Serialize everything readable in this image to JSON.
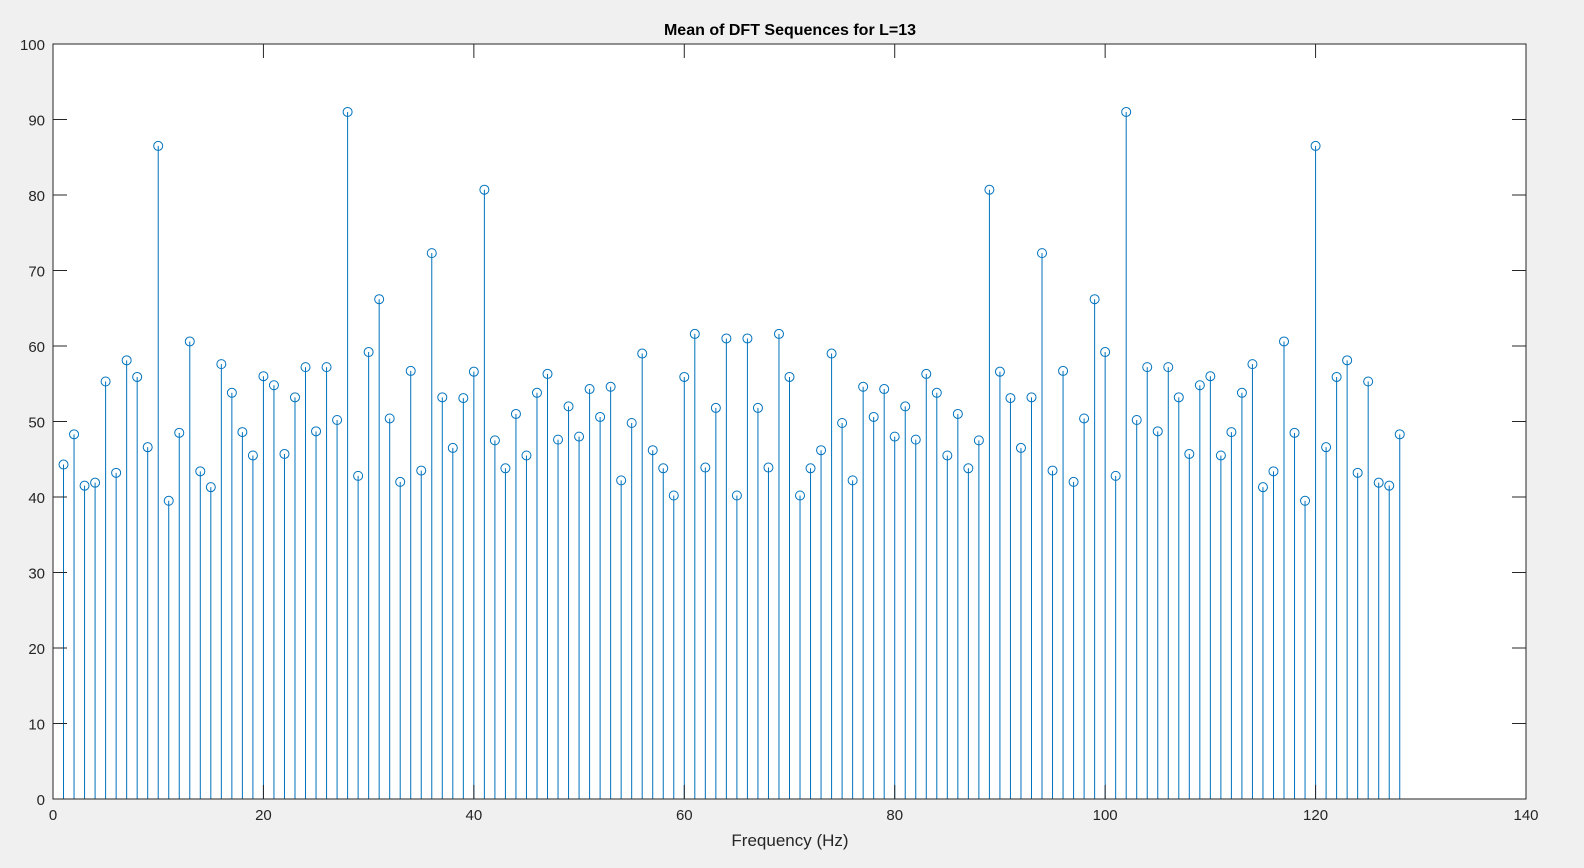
{
  "figure": {
    "background": "#f0f0f0",
    "axes_background": "#ffffff",
    "axis_color": "#262626",
    "stem_color": "#0072bd"
  },
  "chart_data": {
    "type": "stem",
    "title": "Mean of DFT Sequences for L=13",
    "xlabel": "Frequency (Hz)",
    "ylabel": "",
    "xlim": [
      0,
      140
    ],
    "ylim": [
      0,
      100
    ],
    "xticks": [
      0,
      20,
      40,
      60,
      80,
      100,
      120,
      140
    ],
    "yticks": [
      0,
      10,
      20,
      30,
      40,
      50,
      60,
      70,
      80,
      90,
      100
    ],
    "grid": false,
    "marker": "open-circle",
    "x": [
      1,
      2,
      3,
      4,
      5,
      6,
      7,
      8,
      9,
      10,
      11,
      12,
      13,
      14,
      15,
      16,
      17,
      18,
      19,
      20,
      21,
      22,
      23,
      24,
      25,
      26,
      27,
      28,
      29,
      30,
      31,
      32,
      33,
      34,
      35,
      36,
      37,
      38,
      39,
      40,
      41,
      42,
      43,
      44,
      45,
      46,
      47,
      48,
      49,
      50,
      51,
      52,
      53,
      54,
      55,
      56,
      57,
      58,
      59,
      60,
      61,
      62,
      63,
      64,
      65,
      66,
      67,
      68,
      69,
      70,
      71,
      72,
      73,
      74,
      75,
      76,
      77,
      78,
      79,
      80,
      81,
      82,
      83,
      84,
      85,
      86,
      87,
      88,
      89,
      90,
      91,
      92,
      93,
      94,
      95,
      96,
      97,
      98,
      99,
      100,
      101,
      102,
      103,
      104,
      105,
      106,
      107,
      108,
      109,
      110,
      111,
      112,
      113,
      114,
      115,
      116,
      117,
      118,
      119,
      120,
      121,
      122,
      123,
      124,
      125,
      126,
      127,
      128
    ],
    "values": [
      44.3,
      48.3,
      41.5,
      41.9,
      55.3,
      43.2,
      58.1,
      55.9,
      46.6,
      86.5,
      39.5,
      48.5,
      60.6,
      43.4,
      41.3,
      57.6,
      53.8,
      48.6,
      45.5,
      56.0,
      54.8,
      45.7,
      53.2,
      57.2,
      48.7,
      57.2,
      50.2,
      91.0,
      42.8,
      59.2,
      66.2,
      50.4,
      42.0,
      56.7,
      43.5,
      72.3,
      53.2,
      46.5,
      53.1,
      56.6,
      80.7,
      47.5,
      43.8,
      51.0,
      45.5,
      53.8,
      56.3,
      47.6,
      52.0,
      48.0,
      54.3,
      50.6,
      54.6,
      42.2,
      49.8,
      59.0,
      46.2,
      43.8,
      40.2,
      55.9,
      61.6,
      43.9,
      51.8,
      61.0,
      40.2,
      61.0,
      51.8,
      43.9,
      61.6,
      55.9,
      40.2,
      43.8,
      46.2,
      59.0,
      49.8,
      42.2,
      54.6,
      50.6,
      54.3,
      48.0,
      52.0,
      47.6,
      56.3,
      53.8,
      45.5,
      51.0,
      43.8,
      47.5,
      80.7,
      56.6,
      53.1,
      46.5,
      53.2,
      72.3,
      43.5,
      56.7,
      42.0,
      50.4,
      66.2,
      59.2,
      42.8,
      91.0,
      50.2,
      57.2,
      48.7,
      57.2,
      53.2,
      45.7,
      54.8,
      56.0,
      45.5,
      48.6,
      53.8,
      57.6,
      41.3,
      43.4,
      60.6,
      48.5,
      39.5,
      86.5,
      46.6,
      55.9,
      58.1,
      43.2,
      55.3,
      41.9,
      41.5,
      48.3
    ]
  }
}
